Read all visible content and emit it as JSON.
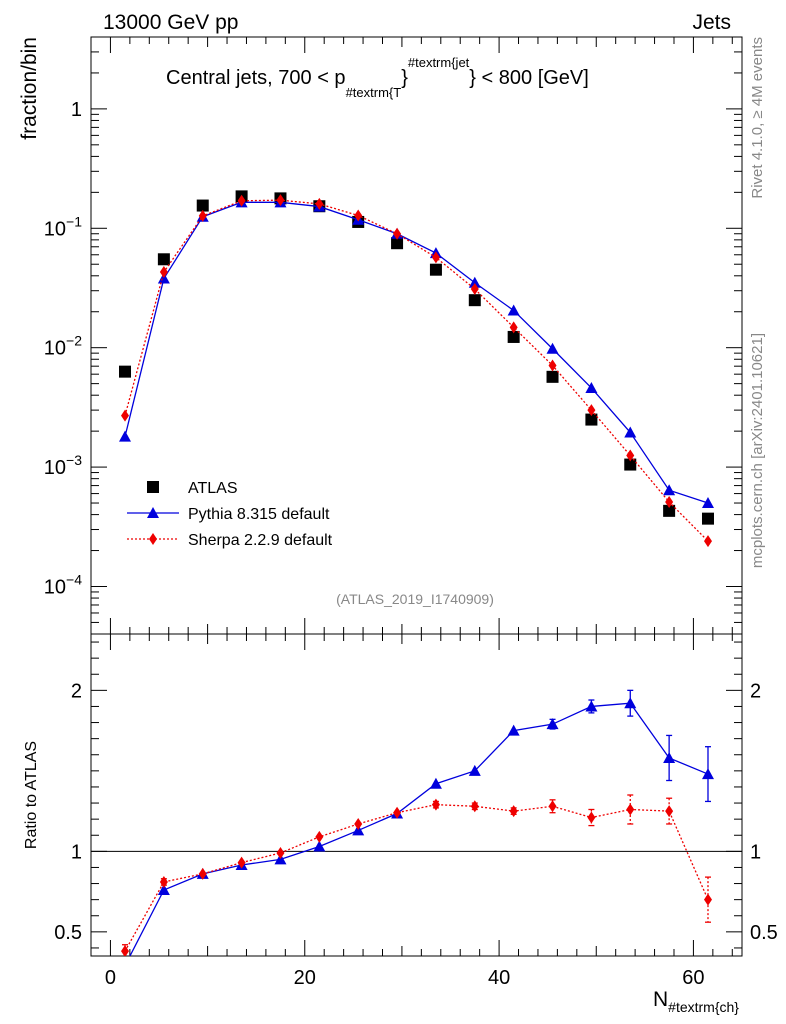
{
  "header": {
    "left": "13000 GeV pp",
    "right": "Jets"
  },
  "side_labels": {
    "top": "Rivet 4.1.0, ≥ 4M events",
    "bottom": "mcplots.cern.ch [arXiv:2401.10621]"
  },
  "chart_data": {
    "type": "scatter",
    "title": "Central jets, 700 < p",
    "title_sub": "#textrm{T",
    "title_sup": "#textrm{jet",
    "title_tail": "} < 800 [GeV]",
    "title_brace": "}",
    "analysis_label": "(ATLAS_2019_I1740909)",
    "xlabel": "N",
    "xlabel_sub": "#textrm{ch}",
    "ylabel_main": "fraction/bin",
    "ylabel_ratio": "Ratio to ATLAS",
    "xlim": [
      -2,
      65
    ],
    "ylim_main": [
      4e-05,
      4
    ],
    "ylim_ratio": [
      0.35,
      2.35
    ],
    "x_ticks": [
      0,
      20,
      40,
      60
    ],
    "x_tick_labels": [
      "0",
      "20",
      "40",
      "60"
    ],
    "y_ticks_main": [
      {
        "v": 1,
        "base": "1",
        "exp": ""
      },
      {
        "v": 0.1,
        "base": "10",
        "exp": "−1"
      },
      {
        "v": 0.01,
        "base": "10",
        "exp": "−2"
      },
      {
        "v": 0.001,
        "base": "10",
        "exp": "−3"
      },
      {
        "v": 0.0001,
        "base": "10",
        "exp": "−4"
      }
    ],
    "y_ticks_ratio": [
      {
        "v": 0.5,
        "label": "0.5"
      },
      {
        "v": 1,
        "label": "1"
      },
      {
        "v": 2,
        "label": "2"
      }
    ],
    "x": [
      1.5,
      5.5,
      9.5,
      13.5,
      17.5,
      21.5,
      25.5,
      29.5,
      33.5,
      37.5,
      41.5,
      45.5,
      49.5,
      53.5,
      57.5,
      61.5
    ],
    "series": [
      {
        "name": "ATLAS",
        "color": "#000000",
        "marker": "square",
        "line": "none",
        "values": [
          0.0063,
          0.055,
          0.155,
          0.185,
          0.178,
          0.153,
          0.113,
          0.075,
          0.045,
          0.025,
          0.0123,
          0.0057,
          0.0025,
          0.00105,
          0.00043,
          0.00037
        ]
      },
      {
        "name": "Pythia 8.315 default",
        "color": "#0000dd",
        "marker": "triangle",
        "line": "solid",
        "values": [
          0.0018,
          0.038,
          0.125,
          0.165,
          0.165,
          0.152,
          0.118,
          0.09,
          0.062,
          0.035,
          0.0205,
          0.0098,
          0.0046,
          0.00195,
          0.00064,
          0.0005
        ],
        "ratio": [
          0.29,
          0.76,
          0.86,
          0.915,
          0.95,
          1.03,
          1.13,
          1.235,
          1.42,
          1.5,
          1.75,
          1.79,
          1.9,
          1.92,
          1.58,
          1.48
        ],
        "ratio_err": [
          0,
          0,
          0,
          0,
          0,
          0,
          0,
          0,
          0,
          0,
          0,
          0.03,
          0.04,
          0.08,
          0.14,
          0.17
        ]
      },
      {
        "name": "Sherpa 2.2.9 default",
        "color": "#ee0000",
        "marker": "diamond",
        "line": "dotted",
        "values": [
          0.0027,
          0.043,
          0.127,
          0.17,
          0.172,
          0.16,
          0.128,
          0.09,
          0.057,
          0.031,
          0.0148,
          0.0071,
          0.003,
          0.00125,
          0.00051,
          0.00024
        ],
        "ratio": [
          0.38,
          0.81,
          0.86,
          0.93,
          0.99,
          1.09,
          1.17,
          1.24,
          1.29,
          1.28,
          1.25,
          1.28,
          1.21,
          1.26,
          1.25,
          0.7
        ],
        "ratio_err": [
          0.04,
          0.02,
          0,
          0,
          0,
          0,
          0,
          0,
          0.02,
          0.02,
          0.02,
          0.04,
          0.05,
          0.09,
          0.08,
          0.14
        ]
      }
    ],
    "legend": {
      "placement": "bottom-left"
    }
  }
}
